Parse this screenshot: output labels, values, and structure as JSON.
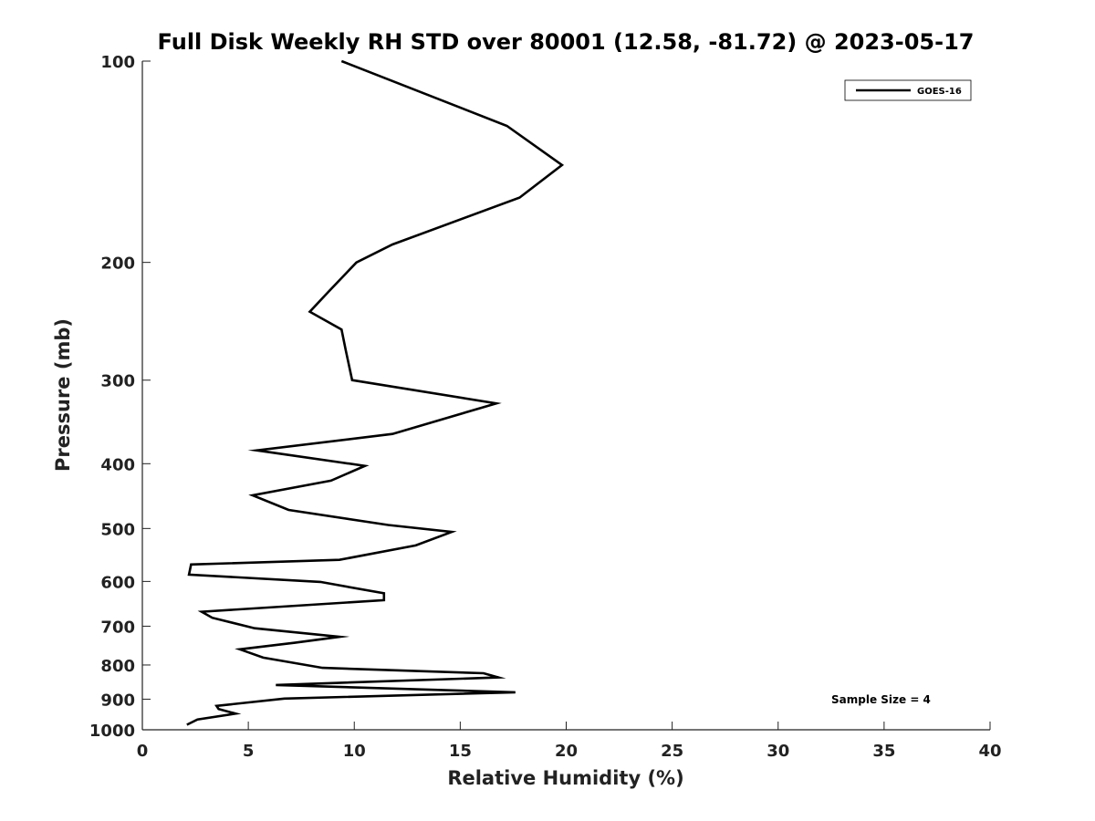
{
  "chart_data": {
    "type": "line",
    "title": "Full Disk Weekly RH STD over 80001 (12.58, -81.72) @ 2023-05-17",
    "xlabel": "Relative Humidity (%)",
    "ylabel": "Pressure (mb)",
    "xlim": [
      0,
      40
    ],
    "ylim": [
      100,
      1000
    ],
    "yscale": "log",
    "y_reversed": true,
    "grid": false,
    "legend_position": "top-right",
    "xticks": [
      0,
      5,
      10,
      15,
      20,
      25,
      30,
      35,
      40
    ],
    "yticks": [
      100,
      200,
      300,
      400,
      500,
      600,
      700,
      800,
      900,
      1000
    ],
    "series": [
      {
        "name": "GOES-16",
        "color": "#000000",
        "points": [
          [
            9.4,
            100
          ],
          [
            17.2,
            125
          ],
          [
            19.8,
            143
          ],
          [
            17.8,
            160
          ],
          [
            11.8,
            188
          ],
          [
            10.1,
            200
          ],
          [
            8.8,
            221
          ],
          [
            7.9,
            237
          ],
          [
            9.4,
            252
          ],
          [
            9.6,
            271
          ],
          [
            9.9,
            300
          ],
          [
            16.7,
            325
          ],
          [
            11.8,
            361
          ],
          [
            5.4,
            382
          ],
          [
            10.5,
            403
          ],
          [
            8.9,
            424
          ],
          [
            5.2,
            446
          ],
          [
            6.9,
            469
          ],
          [
            11.6,
            494
          ],
          [
            14.6,
            506
          ],
          [
            12.9,
            530
          ],
          [
            9.3,
            557
          ],
          [
            2.3,
            566
          ],
          [
            2.2,
            586
          ],
          [
            8.4,
            601
          ],
          [
            11.4,
            625
          ],
          [
            11.4,
            640
          ],
          [
            2.8,
            666
          ],
          [
            3.3,
            680
          ],
          [
            5.3,
            705
          ],
          [
            9.3,
            726
          ],
          [
            7.2,
            741
          ],
          [
            4.6,
            758
          ],
          [
            5.7,
            780
          ],
          [
            8.5,
            808
          ],
          [
            16.1,
            823
          ],
          [
            16.8,
            835
          ],
          [
            6.3,
            857
          ],
          [
            17.6,
            879
          ],
          [
            6.7,
            898
          ],
          [
            3.5,
            921
          ],
          [
            3.6,
            931
          ],
          [
            4.4,
            946
          ],
          [
            2.6,
            965
          ],
          [
            2.1,
            983
          ]
        ]
      }
    ],
    "annotations": [
      "Sample Size = 4"
    ]
  }
}
